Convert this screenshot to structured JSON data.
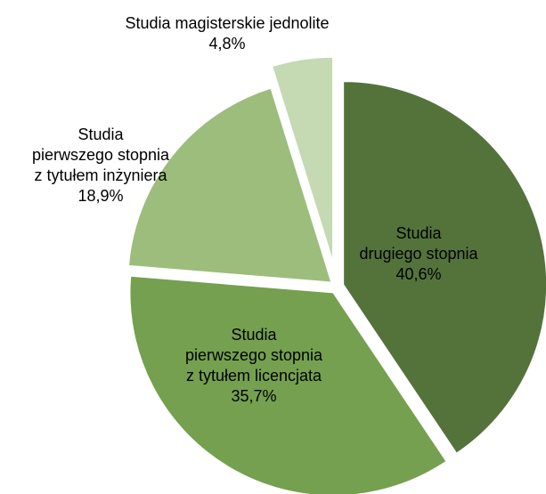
{
  "chart_data": {
    "type": "pie",
    "categories": [
      "Studia\ndrugiego stopnia",
      "Studia\npierwszego stopnia\nz tytułem licencjata",
      "Studia\npierwszego stopnia\nz tytułem inżyniera",
      "Studia magisterskie jednolite"
    ],
    "values": [
      40.6,
      35.7,
      18.9,
      4.8
    ],
    "value_labels": [
      "40,6%",
      "35,7%",
      "18,9%",
      "4,8%"
    ],
    "colors": [
      "#54733b",
      "#75a050",
      "#9dbd7c",
      "#c5d9b2"
    ]
  }
}
